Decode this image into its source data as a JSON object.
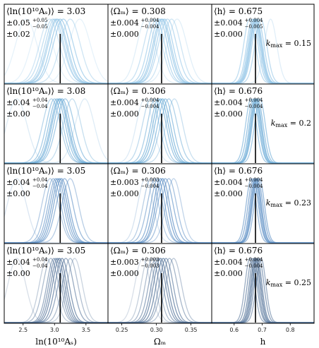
{
  "chart_data": {
    "type": "line",
    "description_free": true,
    "columns": [
      {
        "key": "lnAs",
        "xlabel": "ln(10¹⁰Aₛ)",
        "xlim": [
          2.2,
          3.85
        ],
        "truth": 3.09,
        "ticks": [
          2.5,
          3.0,
          3.5
        ],
        "tick_labels": [
          "2.5",
          "3.0",
          "3.5"
        ],
        "stat_label": "⟨ln(10¹⁰Aₛ)⟩"
      },
      {
        "key": "Om",
        "xlabel": "Ωₘ",
        "xlim": [
          0.23,
          0.38
        ],
        "truth": 0.3075,
        "ticks": [
          0.25,
          0.3,
          0.35
        ],
        "tick_labels": [
          "0.25",
          "0.30",
          "0.35"
        ],
        "stat_label": "⟨Ωₘ⟩"
      },
      {
        "key": "h",
        "xlabel": "h",
        "xlim": [
          0.52,
          0.885
        ],
        "truth": 0.676,
        "ticks": [
          0.6,
          0.7,
          0.8
        ],
        "tick_labels": [
          "0.6",
          "0.7",
          "0.8"
        ],
        "stat_label": "⟨h⟩"
      }
    ],
    "rows": [
      {
        "kmax_label": "kmax = 0.15",
        "kmax": "0.15",
        "color": "#8fc3e6",
        "panels": [
          {
            "mean": "3.03",
            "err": "±0.05",
            "up": "+0.05",
            "down": "−0.05",
            "sys": "±0.02",
            "curves": [
              {
                "mu": 2.55,
                "sigma": 0.17
              },
              {
                "mu": 2.8,
                "sigma": 0.17
              },
              {
                "mu": 2.92,
                "sigma": 0.16
              },
              {
                "mu": 2.97,
                "sigma": 0.16
              },
              {
                "mu": 3.0,
                "sigma": 0.15
              },
              {
                "mu": 3.03,
                "sigma": 0.15
              },
              {
                "mu": 3.05,
                "sigma": 0.15
              },
              {
                "mu": 3.09,
                "sigma": 0.15
              },
              {
                "mu": 3.14,
                "sigma": 0.16
              },
              {
                "mu": 3.25,
                "sigma": 0.16
              },
              {
                "mu": 3.4,
                "sigma": 0.17
              }
            ]
          },
          {
            "mean": "0.308",
            "err": "±0.004",
            "up": "+0.004",
            "down": "−0.004",
            "sys": "±0.000",
            "curves": [
              {
                "mu": 0.285,
                "sigma": 0.013
              },
              {
                "mu": 0.295,
                "sigma": 0.013
              },
              {
                "mu": 0.3,
                "sigma": 0.012
              },
              {
                "mu": 0.304,
                "sigma": 0.012
              },
              {
                "mu": 0.307,
                "sigma": 0.012
              },
              {
                "mu": 0.309,
                "sigma": 0.012
              },
              {
                "mu": 0.312,
                "sigma": 0.012
              },
              {
                "mu": 0.316,
                "sigma": 0.013
              },
              {
                "mu": 0.322,
                "sigma": 0.013
              },
              {
                "mu": 0.33,
                "sigma": 0.014
              }
            ]
          },
          {
            "mean": "0.675",
            "err": "±0.004",
            "up": "+0.004",
            "down": "−0.005",
            "sys": "±0.000",
            "curves": [
              {
                "mu": 0.655,
                "sigma": 0.021
              },
              {
                "mu": 0.665,
                "sigma": 0.02
              },
              {
                "mu": 0.67,
                "sigma": 0.02
              },
              {
                "mu": 0.674,
                "sigma": 0.02
              },
              {
                "mu": 0.677,
                "sigma": 0.02
              },
              {
                "mu": 0.68,
                "sigma": 0.02
              },
              {
                "mu": 0.685,
                "sigma": 0.021
              },
              {
                "mu": 0.695,
                "sigma": 0.021
              },
              {
                "mu": 0.73,
                "sigma": 0.022
              }
            ]
          }
        ]
      },
      {
        "kmax_label": "kmax = 0.2",
        "kmax": "0.2",
        "color": "#6aaad6",
        "panels": [
          {
            "mean": "3.08",
            "err": "±0.04",
            "up": "+0.04",
            "down": "−0.04",
            "sys": "±0.00",
            "curves": [
              {
                "mu": 2.4,
                "sigma": 0.16
              },
              {
                "mu": 2.95,
                "sigma": 0.14
              },
              {
                "mu": 3.0,
                "sigma": 0.13
              },
              {
                "mu": 3.04,
                "sigma": 0.13
              },
              {
                "mu": 3.07,
                "sigma": 0.13
              },
              {
                "mu": 3.09,
                "sigma": 0.13
              },
              {
                "mu": 3.12,
                "sigma": 0.13
              },
              {
                "mu": 3.17,
                "sigma": 0.14
              },
              {
                "mu": 3.28,
                "sigma": 0.14
              },
              {
                "mu": 3.48,
                "sigma": 0.15
              }
            ]
          },
          {
            "mean": "0.306",
            "err": "±0.004",
            "up": "+0.004",
            "down": "−0.004",
            "sys": "±0.000",
            "curves": [
              {
                "mu": 0.283,
                "sigma": 0.012
              },
              {
                "mu": 0.292,
                "sigma": 0.012
              },
              {
                "mu": 0.298,
                "sigma": 0.011
              },
              {
                "mu": 0.303,
                "sigma": 0.011
              },
              {
                "mu": 0.306,
                "sigma": 0.011
              },
              {
                "mu": 0.309,
                "sigma": 0.011
              },
              {
                "mu": 0.313,
                "sigma": 0.011
              },
              {
                "mu": 0.318,
                "sigma": 0.012
              },
              {
                "mu": 0.326,
                "sigma": 0.012
              }
            ]
          },
          {
            "mean": "0.676",
            "err": "±0.004",
            "up": "+0.004",
            "down": "−0.004",
            "sys": "±0.000",
            "curves": [
              {
                "mu": 0.66,
                "sigma": 0.019
              },
              {
                "mu": 0.668,
                "sigma": 0.019
              },
              {
                "mu": 0.673,
                "sigma": 0.018
              },
              {
                "mu": 0.677,
                "sigma": 0.018
              },
              {
                "mu": 0.68,
                "sigma": 0.018
              },
              {
                "mu": 0.684,
                "sigma": 0.019
              },
              {
                "mu": 0.692,
                "sigma": 0.019
              }
            ]
          }
        ]
      },
      {
        "kmax_label": "kmax = 0.23",
        "kmax": "0.23",
        "color": "#5b8ec4",
        "panels": [
          {
            "mean": "3.05",
            "err": "±0.04",
            "up": "+0.04",
            "down": "−0.04",
            "sys": "±0.00",
            "curves": [
              {
                "mu": 2.4,
                "sigma": 0.15
              },
              {
                "mu": 2.93,
                "sigma": 0.13
              },
              {
                "mu": 2.98,
                "sigma": 0.12
              },
              {
                "mu": 3.02,
                "sigma": 0.12
              },
              {
                "mu": 3.05,
                "sigma": 0.12
              },
              {
                "mu": 3.08,
                "sigma": 0.12
              },
              {
                "mu": 3.11,
                "sigma": 0.12
              },
              {
                "mu": 3.16,
                "sigma": 0.13
              },
              {
                "mu": 3.25,
                "sigma": 0.13
              }
            ]
          },
          {
            "mean": "0.306",
            "err": "±0.003",
            "up": "+0.003",
            "down": "−0.004",
            "sys": "±0.000",
            "curves": [
              {
                "mu": 0.284,
                "sigma": 0.011
              },
              {
                "mu": 0.292,
                "sigma": 0.011
              },
              {
                "mu": 0.298,
                "sigma": 0.011
              },
              {
                "mu": 0.302,
                "sigma": 0.01
              },
              {
                "mu": 0.306,
                "sigma": 0.01
              },
              {
                "mu": 0.309,
                "sigma": 0.01
              },
              {
                "mu": 0.313,
                "sigma": 0.011
              },
              {
                "mu": 0.318,
                "sigma": 0.011
              },
              {
                "mu": 0.325,
                "sigma": 0.011
              }
            ]
          },
          {
            "mean": "0.676",
            "err": "±0.004",
            "up": "+0.004",
            "down": "−0.004",
            "sys": "±0.000",
            "curves": [
              {
                "mu": 0.661,
                "sigma": 0.018
              },
              {
                "mu": 0.668,
                "sigma": 0.018
              },
              {
                "mu": 0.673,
                "sigma": 0.017
              },
              {
                "mu": 0.677,
                "sigma": 0.017
              },
              {
                "mu": 0.68,
                "sigma": 0.017
              },
              {
                "mu": 0.684,
                "sigma": 0.018
              },
              {
                "mu": 0.69,
                "sigma": 0.018
              }
            ]
          }
        ]
      },
      {
        "kmax_label": "kmax = 0.25",
        "kmax": "0.25",
        "color": "#4f6f96",
        "panels": [
          {
            "mean": "3.05",
            "err": "±0.04",
            "up": "+0.04",
            "down": "−0.04",
            "sys": "±0.00",
            "curves": [
              {
                "mu": 2.4,
                "sigma": 0.14
              },
              {
                "mu": 2.88,
                "sigma": 0.12
              },
              {
                "mu": 2.94,
                "sigma": 0.12
              },
              {
                "mu": 2.99,
                "sigma": 0.11
              },
              {
                "mu": 3.02,
                "sigma": 0.11
              },
              {
                "mu": 3.05,
                "sigma": 0.11
              },
              {
                "mu": 3.08,
                "sigma": 0.11
              },
              {
                "mu": 3.12,
                "sigma": 0.11
              },
              {
                "mu": 3.18,
                "sigma": 0.12
              },
              {
                "mu": 3.25,
                "sigma": 0.12
              },
              {
                "mu": 3.32,
                "sigma": 0.12
              }
            ]
          },
          {
            "mean": "0.306",
            "err": "±0.003",
            "up": "+0.003",
            "down": "−0.003",
            "sys": "±0.000",
            "curves": [
              {
                "mu": 0.28,
                "sigma": 0.011
              },
              {
                "mu": 0.288,
                "sigma": 0.01
              },
              {
                "mu": 0.294,
                "sigma": 0.01
              },
              {
                "mu": 0.299,
                "sigma": 0.01
              },
              {
                "mu": 0.303,
                "sigma": 0.01
              },
              {
                "mu": 0.306,
                "sigma": 0.01
              },
              {
                "mu": 0.31,
                "sigma": 0.01
              },
              {
                "mu": 0.314,
                "sigma": 0.01
              },
              {
                "mu": 0.319,
                "sigma": 0.011
              },
              {
                "mu": 0.325,
                "sigma": 0.011
              }
            ]
          },
          {
            "mean": "0.676",
            "err": "±0.004",
            "up": "+0.004",
            "down": "−0.004",
            "sys": "±0.000",
            "curves": [
              {
                "mu": 0.656,
                "sigma": 0.017
              },
              {
                "mu": 0.664,
                "sigma": 0.017
              },
              {
                "mu": 0.67,
                "sigma": 0.016
              },
              {
                "mu": 0.675,
                "sigma": 0.016
              },
              {
                "mu": 0.679,
                "sigma": 0.016
              },
              {
                "mu": 0.683,
                "sigma": 0.016
              },
              {
                "mu": 0.689,
                "sigma": 0.017
              },
              {
                "mu": 0.696,
                "sigma": 0.017
              }
            ]
          }
        ]
      }
    ],
    "truth_line_color": "#000000",
    "grid": false,
    "legend": "none"
  }
}
